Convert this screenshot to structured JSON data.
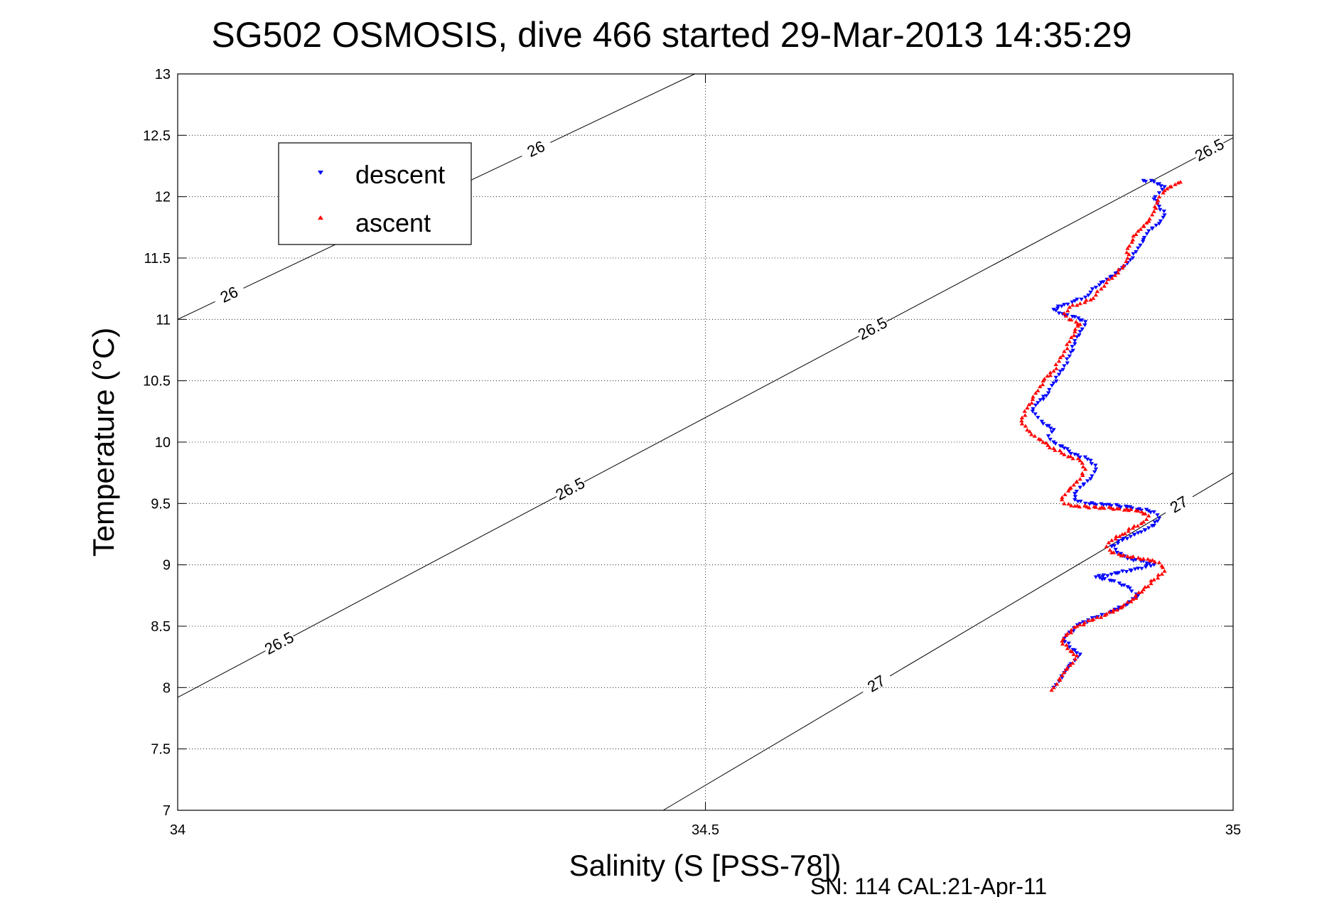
{
  "chart_data": {
    "type": "scatter",
    "title": "SG502 OSMOSIS, dive 466 started 29-Mar-2013 14:35:29",
    "xlabel": "Salinity (S [PSS-78])",
    "ylabel": "Temperature (°C)",
    "xlim": [
      34,
      35
    ],
    "ylim": [
      7,
      13
    ],
    "xticks": [
      34,
      34.5,
      35
    ],
    "xtick_labels": [
      "34",
      "34.5",
      "35"
    ],
    "yticks": [
      7,
      7.5,
      8,
      8.5,
      9,
      9.5,
      10,
      10.5,
      11,
      11.5,
      12,
      12.5,
      13
    ],
    "ytick_labels": [
      "7",
      "7.5",
      "8",
      "8.5",
      "9",
      "9.5",
      "10",
      "10.5",
      "11",
      "11.5",
      "12",
      "12.5",
      "13"
    ],
    "grid": true,
    "legend_position": "top-left",
    "footer": "SN: 114  CAL:21-Apr-11",
    "contours": [
      {
        "level": "26",
        "points": [
          [
            34.0,
            11.0
          ],
          [
            34.49,
            13.0
          ]
        ],
        "label_positions": [
          [
            34.05,
            11.18
          ],
          [
            34.34,
            12.38
          ]
        ]
      },
      {
        "level": "26.5",
        "points": [
          [
            34.0,
            7.92
          ],
          [
            35.0,
            12.48
          ]
        ],
        "label_positions": [
          [
            34.095,
            8.38
          ],
          [
            34.37,
            9.65
          ],
          [
            34.655,
            10.98
          ],
          [
            34.985,
            12.26
          ]
        ]
      },
      {
        "level": "27",
        "points": [
          [
            34.46,
            7.0
          ],
          [
            35.0,
            9.75
          ]
        ],
        "label_positions": [
          [
            34.66,
            8.06
          ],
          [
            34.955,
            9.4
          ]
        ]
      }
    ],
    "series": [
      {
        "name": "descent",
        "color": "#0000ff",
        "marker": "triangle-down",
        "points": [
          [
            34.83,
            8.0
          ],
          [
            34.835,
            8.05
          ],
          [
            34.84,
            8.12
          ],
          [
            34.845,
            8.18
          ],
          [
            34.85,
            8.22
          ],
          [
            34.855,
            8.27
          ],
          [
            34.845,
            8.33
          ],
          [
            34.84,
            8.4
          ],
          [
            34.845,
            8.45
          ],
          [
            34.855,
            8.52
          ],
          [
            34.87,
            8.57
          ],
          [
            34.885,
            8.62
          ],
          [
            34.9,
            8.68
          ],
          [
            34.91,
            8.75
          ],
          [
            34.9,
            8.82
          ],
          [
            34.885,
            8.87
          ],
          [
            34.87,
            8.9
          ],
          [
            34.89,
            8.93
          ],
          [
            34.91,
            8.97
          ],
          [
            34.925,
            9.0
          ],
          [
            34.915,
            9.03
          ],
          [
            34.9,
            9.05
          ],
          [
            34.89,
            9.1
          ],
          [
            34.885,
            9.15
          ],
          [
            34.895,
            9.2
          ],
          [
            34.91,
            9.26
          ],
          [
            34.925,
            9.32
          ],
          [
            34.93,
            9.38
          ],
          [
            34.925,
            9.43
          ],
          [
            34.9,
            9.47
          ],
          [
            34.88,
            9.49
          ],
          [
            34.86,
            9.5
          ],
          [
            34.85,
            9.53
          ],
          [
            34.85,
            9.58
          ],
          [
            34.855,
            9.63
          ],
          [
            34.865,
            9.7
          ],
          [
            34.87,
            9.78
          ],
          [
            34.865,
            9.85
          ],
          [
            34.85,
            9.9
          ],
          [
            34.84,
            9.95
          ],
          [
            34.83,
            10.0
          ],
          [
            34.825,
            10.05
          ],
          [
            34.83,
            10.1
          ],
          [
            34.82,
            10.15
          ],
          [
            34.815,
            10.2
          ],
          [
            34.81,
            10.25
          ],
          [
            34.815,
            10.32
          ],
          [
            34.825,
            10.4
          ],
          [
            34.83,
            10.48
          ],
          [
            34.835,
            10.55
          ],
          [
            34.84,
            10.62
          ],
          [
            34.845,
            10.7
          ],
          [
            34.85,
            10.8
          ],
          [
            34.855,
            10.9
          ],
          [
            34.86,
            10.98
          ],
          [
            34.85,
            11.02
          ],
          [
            34.835,
            11.05
          ],
          [
            34.83,
            11.08
          ],
          [
            34.84,
            11.12
          ],
          [
            34.85,
            11.15
          ],
          [
            34.86,
            11.18
          ],
          [
            34.865,
            11.22
          ],
          [
            34.87,
            11.26
          ],
          [
            34.875,
            11.3
          ],
          [
            34.885,
            11.35
          ],
          [
            34.895,
            11.42
          ],
          [
            34.905,
            11.5
          ],
          [
            34.91,
            11.58
          ],
          [
            34.915,
            11.65
          ],
          [
            34.92,
            11.72
          ],
          [
            34.93,
            11.78
          ],
          [
            34.935,
            11.85
          ],
          [
            34.93,
            11.92
          ],
          [
            34.925,
            11.98
          ],
          [
            34.93,
            12.03
          ],
          [
            34.935,
            12.08
          ],
          [
            34.925,
            12.12
          ],
          [
            34.915,
            12.13
          ]
        ]
      },
      {
        "name": "ascent",
        "color": "#ff0000",
        "marker": "triangle-up",
        "points": [
          [
            34.828,
            7.98
          ],
          [
            34.833,
            8.03
          ],
          [
            34.838,
            8.1
          ],
          [
            34.842,
            8.15
          ],
          [
            34.848,
            8.2
          ],
          [
            34.852,
            8.26
          ],
          [
            34.843,
            8.32
          ],
          [
            34.838,
            8.38
          ],
          [
            34.843,
            8.44
          ],
          [
            34.852,
            8.5
          ],
          [
            34.866,
            8.55
          ],
          [
            34.88,
            8.6
          ],
          [
            34.895,
            8.66
          ],
          [
            34.905,
            8.72
          ],
          [
            34.915,
            8.8
          ],
          [
            34.925,
            8.88
          ],
          [
            34.935,
            8.95
          ],
          [
            34.93,
            9.02
          ],
          [
            34.915,
            9.05
          ],
          [
            34.9,
            9.07
          ],
          [
            34.885,
            9.1
          ],
          [
            34.88,
            9.15
          ],
          [
            34.885,
            9.2
          ],
          [
            34.895,
            9.25
          ],
          [
            34.905,
            9.3
          ],
          [
            34.915,
            9.35
          ],
          [
            34.92,
            9.4
          ],
          [
            34.91,
            9.44
          ],
          [
            34.89,
            9.46
          ],
          [
            34.87,
            9.47
          ],
          [
            34.85,
            9.48
          ],
          [
            34.84,
            9.5
          ],
          [
            34.838,
            9.55
          ],
          [
            34.845,
            9.62
          ],
          [
            34.855,
            9.7
          ],
          [
            34.86,
            9.78
          ],
          [
            34.855,
            9.85
          ],
          [
            34.84,
            9.9
          ],
          [
            34.83,
            9.95
          ],
          [
            34.82,
            10.0
          ],
          [
            34.812,
            10.05
          ],
          [
            34.805,
            10.1
          ],
          [
            34.8,
            10.15
          ],
          [
            34.8,
            10.2
          ],
          [
            34.805,
            10.28
          ],
          [
            34.81,
            10.35
          ],
          [
            34.815,
            10.42
          ],
          [
            34.82,
            10.5
          ],
          [
            34.83,
            10.58
          ],
          [
            34.835,
            10.66
          ],
          [
            34.84,
            10.74
          ],
          [
            34.845,
            10.82
          ],
          [
            34.85,
            10.9
          ],
          [
            34.855,
            10.96
          ],
          [
            34.845,
            11.0
          ],
          [
            34.84,
            11.05
          ],
          [
            34.845,
            11.1
          ],
          [
            34.855,
            11.13
          ],
          [
            34.865,
            11.16
          ],
          [
            34.87,
            11.2
          ],
          [
            34.875,
            11.25
          ],
          [
            34.88,
            11.3
          ],
          [
            34.888,
            11.36
          ],
          [
            34.895,
            11.42
          ],
          [
            34.9,
            11.5
          ],
          [
            34.9,
            11.58
          ],
          [
            34.905,
            11.65
          ],
          [
            34.91,
            11.72
          ],
          [
            34.92,
            11.8
          ],
          [
            34.925,
            11.88
          ],
          [
            34.928,
            11.95
          ],
          [
            34.93,
            12.0
          ],
          [
            34.935,
            12.05
          ],
          [
            34.94,
            12.08
          ],
          [
            34.945,
            12.1
          ],
          [
            34.95,
            12.12
          ]
        ]
      }
    ]
  }
}
